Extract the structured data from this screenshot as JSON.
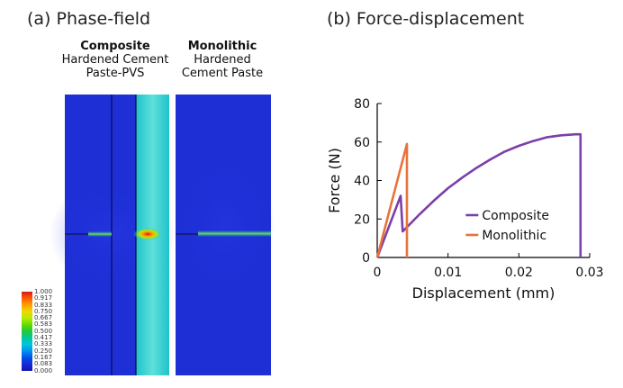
{
  "panel_a": {
    "title": "(a) Phase-field",
    "composite": {
      "head": "Composite",
      "line1": "Hardened Cement",
      "line2": "Paste-PVS"
    },
    "monolithic": {
      "head": "Monolithic",
      "line1": "Hardened",
      "line2": "Cement Paste"
    },
    "colorbar": {
      "labels": [
        "1.000",
        "0.917",
        "0.833",
        "0.750",
        "0.667",
        "0.583",
        "0.500",
        "0.417",
        "0.333",
        "0.250",
        "0.167",
        "0.083",
        "0.000"
      ],
      "colors": [
        "#d7191c",
        "#ff5a00",
        "#ffa000",
        "#f0d800",
        "#b8ea00",
        "#62dc00",
        "#1ec83c",
        "#00c89a",
        "#00c4e0",
        "#0090f0",
        "#0050e6",
        "#1a28d8",
        "#1414b4"
      ]
    }
  },
  "panel_b": {
    "title": "(b) Force-displacement"
  },
  "chart_data": {
    "type": "line",
    "xlabel": "Displacement (mm)",
    "ylabel": "Force (N)",
    "xlim": [
      0,
      0.03
    ],
    "ylim": [
      0,
      80
    ],
    "xticks": [
      "0",
      "0.01",
      "0.02",
      "0.03"
    ],
    "yticks": [
      "0",
      "20",
      "40",
      "60",
      "80"
    ],
    "legend_position": "lower-right",
    "series": [
      {
        "name": "Composite",
        "color": "#7b3fa8",
        "x": [
          0,
          0.0033,
          0.0036,
          0.006,
          0.008,
          0.01,
          0.012,
          0.014,
          0.016,
          0.018,
          0.02,
          0.022,
          0.024,
          0.026,
          0.028,
          0.0287,
          0.0287
        ],
        "y": [
          0,
          32,
          13.5,
          22.5,
          29.5,
          36,
          41.5,
          46.5,
          51,
          55,
          58,
          60.5,
          62.5,
          63.5,
          64,
          64,
          0
        ]
      },
      {
        "name": "Monolithic",
        "color": "#e8733a",
        "x": [
          0,
          0.0042,
          0.0042
        ],
        "y": [
          0,
          59,
          0
        ]
      }
    ]
  }
}
